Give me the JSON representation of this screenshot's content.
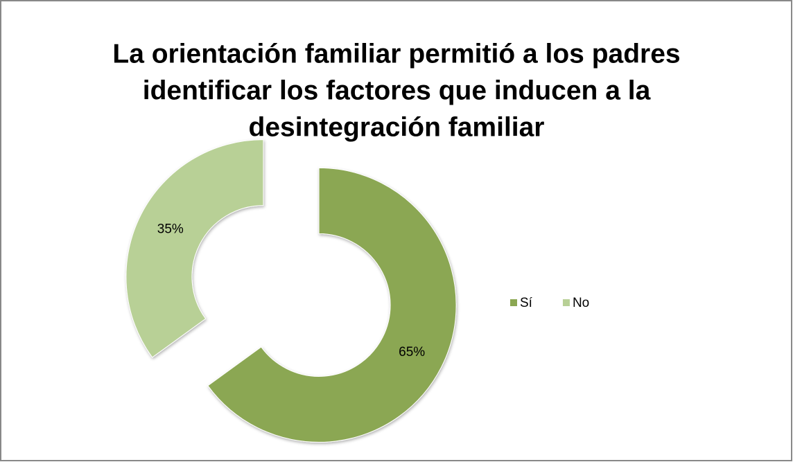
{
  "chart_data": {
    "type": "donut",
    "title": [
      "La orientación familiar permitió a los padres",
      "identificar los factores que inducen a la",
      "desintegración familiar"
    ],
    "categories": [
      "Sí",
      "No"
    ],
    "values": [
      65,
      35
    ],
    "value_labels": [
      "65%",
      "35%"
    ],
    "colors": [
      "#8ba752",
      "#b8d096"
    ],
    "legend": "right",
    "exploded": true
  }
}
